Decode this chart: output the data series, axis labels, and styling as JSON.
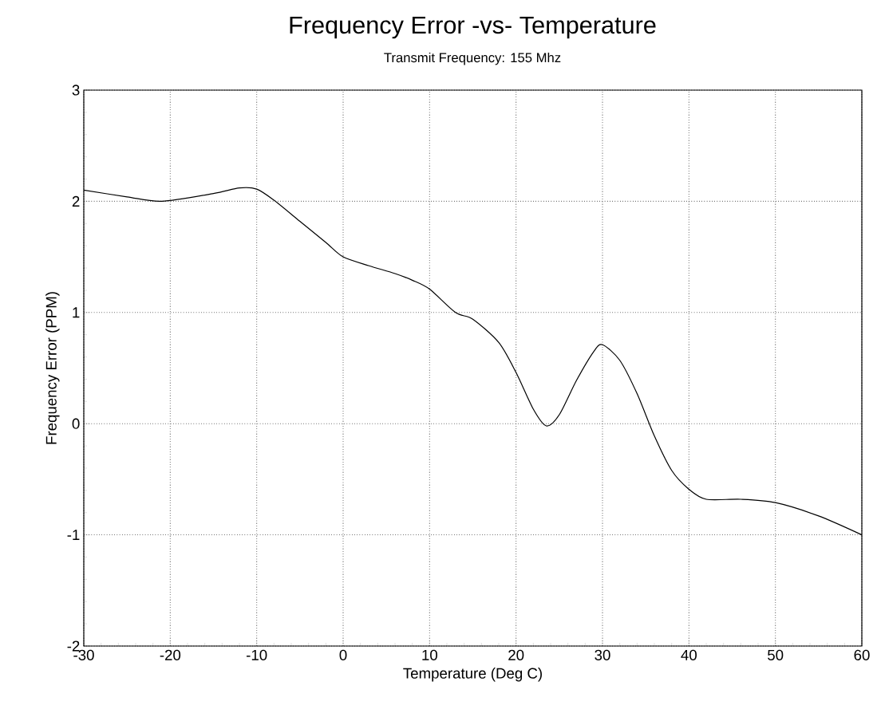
{
  "chart_data": {
    "type": "line",
    "title": "Frequency Error -vs- Temperature",
    "subtitle": "Transmit Frequency:  155 Mhz",
    "xlabel": "Temperature (Deg C)",
    "ylabel": "Frequency Error (PPM)",
    "x": [
      -30,
      -25,
      -21,
      -15,
      -12,
      -10,
      -8,
      -5,
      -2,
      0,
      3,
      6,
      8,
      10,
      13,
      15,
      18,
      20,
      22,
      23.5,
      25,
      27,
      29,
      30,
      32,
      34,
      36,
      38,
      40,
      42,
      46,
      50,
      55,
      60
    ],
    "series": [
      {
        "color": "#000000",
        "values": [
          2.1,
          2.04,
          2.0,
          2.07,
          2.12,
          2.11,
          2.01,
          1.82,
          1.63,
          1.5,
          1.42,
          1.35,
          1.29,
          1.21,
          1.0,
          0.94,
          0.73,
          0.46,
          0.13,
          -0.02,
          0.08,
          0.39,
          0.65,
          0.71,
          0.57,
          0.27,
          -0.11,
          -0.42,
          -0.59,
          -0.68,
          -0.68,
          -0.71,
          -0.83,
          -1.0
        ]
      }
    ],
    "xlim": [
      -30,
      60
    ],
    "ylim": [
      -2,
      3
    ],
    "xticks": [
      -30,
      -20,
      -10,
      0,
      10,
      20,
      30,
      40,
      50,
      60
    ],
    "yticks": [
      -2,
      -1,
      0,
      1,
      2,
      3
    ],
    "grid": true
  }
}
